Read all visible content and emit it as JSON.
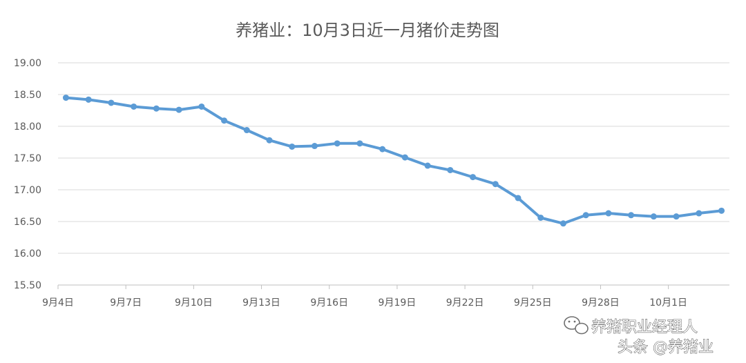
{
  "colors": {
    "series": "#5b9bd5",
    "grid": "#d9d9d9",
    "axis": "#bfbfbf",
    "text": "#595959"
  },
  "chart_data": {
    "type": "line",
    "title": "养猪业：10月3日近一月猪价走势图",
    "xlabel": "",
    "ylabel": "",
    "ylim": [
      15.5,
      19.0
    ],
    "yticks": [
      "19.00",
      "18.50",
      "18.00",
      "17.50",
      "17.00",
      "16.50",
      "16.00",
      "15.50"
    ],
    "ytick_values": [
      19.0,
      18.5,
      18.0,
      17.5,
      17.0,
      16.5,
      16.0,
      15.5
    ],
    "grid": true,
    "legend": "none",
    "x_tick_labels": [
      "9月4日",
      "9月7日",
      "9月10日",
      "9月13日",
      "9月16日",
      "9月19日",
      "9月22日",
      "9月25日",
      "9月28日",
      "10月1日"
    ],
    "x": [
      "9月4日",
      "9月5日",
      "9月6日",
      "9月7日",
      "9月8日",
      "9月9日",
      "9月10日",
      "9月11日",
      "9月12日",
      "9月13日",
      "9月14日",
      "9月15日",
      "9月16日",
      "9月17日",
      "9月18日",
      "9月19日",
      "9月20日",
      "9月21日",
      "9月22日",
      "9月23日",
      "9月24日",
      "9月25日",
      "9月26日",
      "9月27日",
      "9月28日",
      "9月29日",
      "9月30日",
      "10月1日",
      "10月2日",
      "10月3日"
    ],
    "series": [
      {
        "values": [
          18.45,
          18.42,
          18.37,
          18.31,
          18.28,
          18.26,
          18.31,
          18.09,
          17.94,
          17.78,
          17.68,
          17.69,
          17.73,
          17.73,
          17.64,
          17.51,
          17.38,
          17.31,
          17.2,
          17.09,
          16.87,
          16.56,
          16.47,
          16.6,
          16.63,
          16.6,
          16.58,
          16.58,
          16.63,
          16.67
        ]
      }
    ]
  },
  "watermark": {
    "account": "养猪职业经理人",
    "platform": "头条 @养猪业"
  }
}
